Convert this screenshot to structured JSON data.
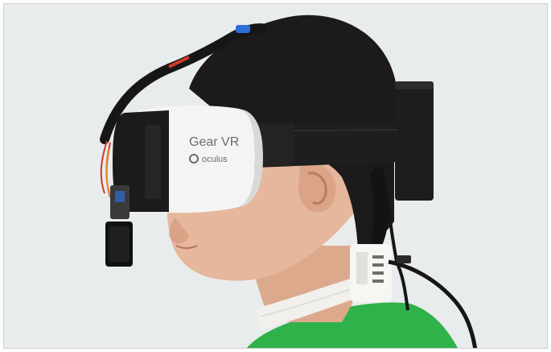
{
  "headset": {
    "brand_label": "Gear VR",
    "sub_label": "oculus"
  },
  "colors": {
    "background": "#eceeee",
    "shirt": "#2fb24a",
    "headset_shell": "#f4f4f4",
    "strap": "#1e1e1e",
    "skin": "#e6b79c",
    "hair": "#1c1a1b",
    "neck_band": "#f1f0ec",
    "cable_accent": "#2a6fd6",
    "wire_red": "#d13a2a"
  }
}
